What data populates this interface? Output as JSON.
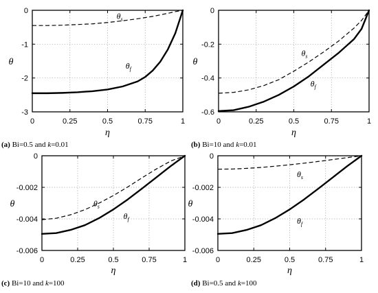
{
  "chart_data": [
    {
      "type": "line",
      "caption": {
        "letter": "(a)",
        "text1": "Bi=0.5 and",
        "kvar": "k",
        "text2": "=0.01"
      },
      "xlabel": "η",
      "ylabel": "θ",
      "xlim": [
        0,
        1
      ],
      "ylim": [
        -3,
        0
      ],
      "xticks": [
        "0",
        "0.25",
        "0.5",
        "0.75",
        "1"
      ],
      "yticks": [
        "-3",
        "-2",
        "-1",
        "0"
      ],
      "grid": true,
      "series": [
        {
          "name": "θ_s",
          "label_base": "θ",
          "label_sub": "s",
          "style": "dashed",
          "x": [
            0,
            0.1,
            0.2,
            0.3,
            0.4,
            0.5,
            0.6,
            0.7,
            0.8,
            0.9,
            0.95,
            1.0
          ],
          "y": [
            -0.45,
            -0.45,
            -0.44,
            -0.42,
            -0.4,
            -0.36,
            -0.31,
            -0.25,
            -0.18,
            -0.09,
            -0.04,
            0
          ]
        },
        {
          "name": "θ_f",
          "label_base": "θ",
          "label_sub": "f",
          "style": "solid",
          "x": [
            0,
            0.1,
            0.2,
            0.3,
            0.4,
            0.5,
            0.6,
            0.7,
            0.75,
            0.8,
            0.85,
            0.9,
            0.95,
            1.0
          ],
          "y": [
            -2.45,
            -2.45,
            -2.44,
            -2.42,
            -2.39,
            -2.34,
            -2.25,
            -2.1,
            -1.97,
            -1.78,
            -1.52,
            -1.16,
            -0.68,
            0
          ]
        }
      ]
    },
    {
      "type": "line",
      "caption": {
        "letter": "(b)",
        "text1": "Bi=10 and",
        "kvar": "k",
        "text2": "=0.01"
      },
      "xlabel": "η",
      "ylabel": "θ",
      "xlim": [
        0,
        1
      ],
      "ylim": [
        -0.6,
        0
      ],
      "xticks": [
        "0",
        "0.25",
        "0.5",
        "0.75",
        "1"
      ],
      "yticks": [
        "-0.6",
        "-0.4",
        "-0.2",
        "0"
      ],
      "grid": true,
      "series": [
        {
          "name": "θ_s",
          "label_base": "θ",
          "label_sub": "s",
          "style": "dashed",
          "x": [
            0,
            0.1,
            0.2,
            0.3,
            0.4,
            0.5,
            0.6,
            0.7,
            0.8,
            0.9,
            0.95,
            1.0
          ],
          "y": [
            -0.49,
            -0.485,
            -0.47,
            -0.445,
            -0.41,
            -0.36,
            -0.305,
            -0.245,
            -0.18,
            -0.105,
            -0.06,
            0
          ]
        },
        {
          "name": "θ_f",
          "label_base": "θ",
          "label_sub": "f",
          "style": "solid",
          "x": [
            0,
            0.1,
            0.2,
            0.3,
            0.4,
            0.5,
            0.6,
            0.7,
            0.8,
            0.9,
            0.95,
            1.0
          ],
          "y": [
            -0.595,
            -0.59,
            -0.57,
            -0.54,
            -0.5,
            -0.45,
            -0.39,
            -0.32,
            -0.25,
            -0.17,
            -0.11,
            0
          ]
        }
      ]
    },
    {
      "type": "line",
      "caption": {
        "letter": "(c)",
        "text1": "Bi=10 and",
        "kvar": "k",
        "text2": "=100"
      },
      "xlabel": "η",
      "ylabel": "θ",
      "xlim": [
        0,
        1
      ],
      "ylim": [
        -0.006,
        0
      ],
      "xticks": [
        "0",
        "0.25",
        "0.5",
        "0.75",
        "1"
      ],
      "yticks": [
        "-0.006",
        "-0.004",
        "-0.002",
        "0"
      ],
      "grid": true,
      "series": [
        {
          "name": "θ_s",
          "label_base": "θ",
          "label_sub": "s",
          "style": "dashed",
          "x": [
            0,
            0.1,
            0.2,
            0.3,
            0.4,
            0.5,
            0.6,
            0.7,
            0.8,
            0.9,
            1.0
          ],
          "y": [
            -0.00405,
            -0.00396,
            -0.00374,
            -0.00342,
            -0.003,
            -0.00252,
            -0.00198,
            -0.0014,
            -0.00084,
            -0.00034,
            0
          ]
        },
        {
          "name": "θ_f",
          "label_base": "θ",
          "label_sub": "f",
          "style": "solid",
          "x": [
            0,
            0.1,
            0.2,
            0.3,
            0.4,
            0.5,
            0.6,
            0.7,
            0.8,
            0.9,
            1.0
          ],
          "y": [
            -0.00495,
            -0.0049,
            -0.0047,
            -0.0044,
            -0.00395,
            -0.0034,
            -0.00277,
            -0.00208,
            -0.00137,
            -0.00066,
            0
          ]
        }
      ]
    },
    {
      "type": "line",
      "caption": {
        "letter": "(d)",
        "text1": "Bi=0.5 and",
        "kvar": "k",
        "text2": "=100"
      },
      "xlabel": "η",
      "ylabel": "θ",
      "xlim": [
        0,
        1
      ],
      "ylim": [
        -0.006,
        0
      ],
      "xticks": [
        "0",
        "0.25",
        "0.5",
        "0.75",
        "1"
      ],
      "yticks": [
        "-0.006",
        "-0.004",
        "-0.002",
        "0"
      ],
      "grid": true,
      "series": [
        {
          "name": "θ_s",
          "label_base": "θ",
          "label_sub": "s",
          "style": "dashed",
          "x": [
            0,
            0.1,
            0.2,
            0.3,
            0.4,
            0.5,
            0.6,
            0.7,
            0.8,
            0.9,
            1.0
          ],
          "y": [
            -0.00085,
            -0.00084,
            -0.0008,
            -0.00074,
            -0.00066,
            -0.00057,
            -0.00047,
            -0.00036,
            -0.00024,
            -0.00012,
            0
          ]
        },
        {
          "name": "θ_f",
          "label_base": "θ",
          "label_sub": "f",
          "style": "solid",
          "x": [
            0,
            0.1,
            0.2,
            0.3,
            0.4,
            0.5,
            0.6,
            0.7,
            0.8,
            0.9,
            1.0
          ],
          "y": [
            -0.00495,
            -0.0049,
            -0.0047,
            -0.0044,
            -0.00395,
            -0.0034,
            -0.00277,
            -0.00208,
            -0.00137,
            -0.00066,
            0
          ]
        }
      ]
    }
  ]
}
